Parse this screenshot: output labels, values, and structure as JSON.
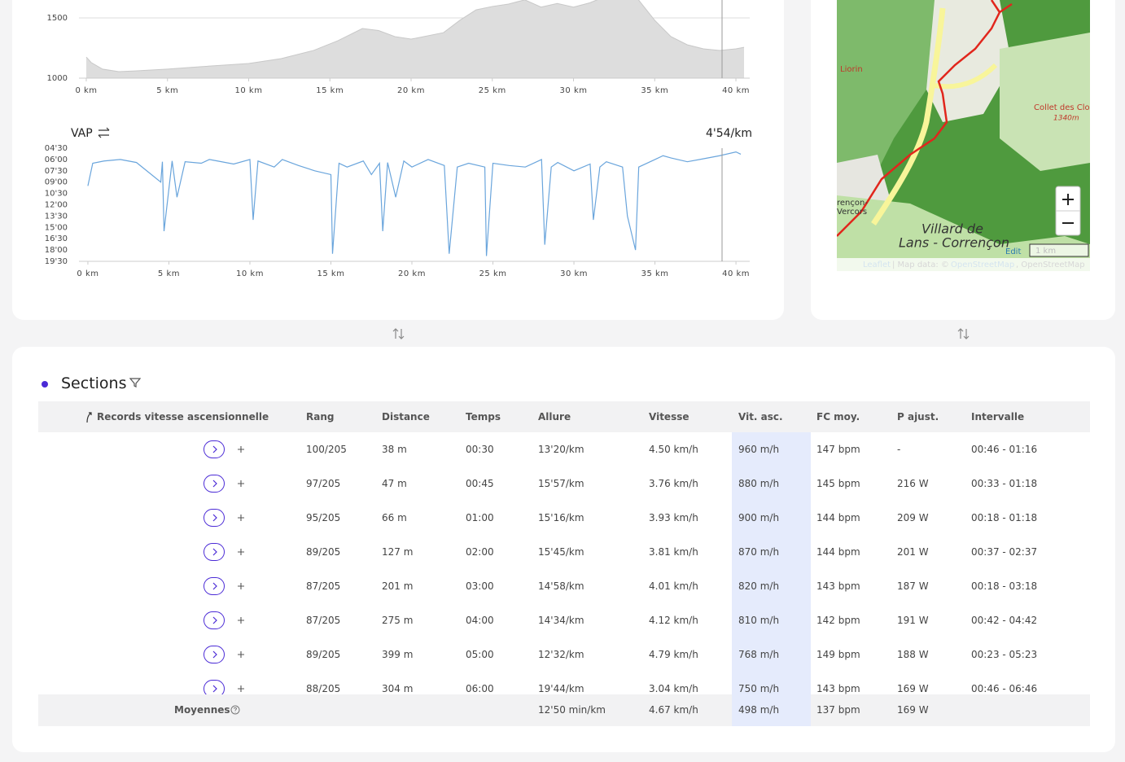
{
  "chart_data": [
    {
      "type": "area",
      "color": "#dddddd",
      "line_color": "#c8c8c8",
      "x": [
        0,
        0.3,
        1,
        2,
        3,
        5,
        7,
        10,
        12,
        14,
        15.5,
        17,
        18,
        19,
        20,
        22,
        23,
        24,
        25,
        26,
        27,
        28,
        29,
        30,
        31,
        32,
        33,
        34,
        35,
        36,
        37,
        38,
        39,
        40,
        40.5
      ],
      "values": [
        1175,
        1130,
        1075,
        1054,
        1060,
        1075,
        1095,
        1122,
        1162,
        1230,
        1311,
        1412,
        1395,
        1345,
        1324,
        1378,
        1480,
        1567,
        1595,
        1615,
        1650,
        1590,
        1620,
        1590,
        1625,
        1680,
        1784,
        1650,
        1480,
        1345,
        1277,
        1243,
        1230,
        1243,
        1256
      ],
      "xlim": [
        -0.45,
        40.85
      ],
      "ylim": [
        1000,
        2000
      ],
      "xticks": [
        {
          "value": 0,
          "label": "0 km"
        },
        {
          "value": 5,
          "label": "5 km"
        },
        {
          "value": 10,
          "label": "10 km"
        },
        {
          "value": 15,
          "label": "15 km"
        },
        {
          "value": 20,
          "label": "20 km"
        },
        {
          "value": 25,
          "label": "25 km"
        },
        {
          "value": 30,
          "label": "30 km"
        },
        {
          "value": 35,
          "label": "35 km"
        },
        {
          "value": 40,
          "label": "40 km"
        }
      ],
      "yticks": [
        1000,
        1500
      ],
      "grid": true
    },
    {
      "type": "line",
      "title": "VAP",
      "annotation": "4'54/km",
      "color": "#6aa5dc",
      "y_reversed": true,
      "x": [
        0,
        0.3,
        1,
        2,
        3,
        4.5,
        4.6,
        4.7,
        5.2,
        5.5,
        6,
        7,
        7.5,
        8,
        9,
        10,
        10.2,
        10.5,
        11.5,
        12,
        13,
        14,
        15,
        15.1,
        15.5,
        16,
        17,
        17.5,
        18,
        18.2,
        18.5,
        19,
        19.5,
        20,
        21,
        22,
        22.3,
        22.8,
        23.5,
        24.5,
        24.6,
        25,
        26,
        27,
        28,
        28.2,
        28.6,
        29,
        30,
        31,
        31.2,
        31.6,
        32,
        33,
        33.3,
        33.8,
        34,
        35,
        35.5,
        36,
        37,
        38,
        39,
        40,
        40.3
      ],
      "values": [
        9.5,
        6.5,
        6.2,
        6.0,
        6.4,
        9.0,
        6.3,
        15.5,
        6.2,
        11.0,
        6.3,
        6.5,
        6.0,
        6.2,
        6.6,
        6.0,
        14.0,
        6.2,
        7.0,
        6.0,
        6.8,
        7.5,
        8.0,
        18.5,
        6.5,
        7.0,
        6.2,
        8.0,
        6.5,
        15.5,
        6.4,
        11.0,
        6.2,
        7.0,
        6.0,
        6.8,
        18.5,
        7.0,
        6.5,
        7.0,
        18.8,
        6.5,
        6.8,
        7.0,
        6.0,
        17.3,
        7.0,
        6.4,
        7.5,
        6.6,
        14.0,
        7.0,
        6.3,
        7.0,
        13.5,
        18.0,
        7.0,
        6.0,
        5.5,
        5.8,
        6.3,
        5.9,
        5.5,
        5.0,
        5.3
      ],
      "xlim": [
        -0.55,
        40.85
      ],
      "ylim": [
        4.5,
        19.5
      ],
      "xticks": [
        {
          "value": 0,
          "label": "0 km"
        },
        {
          "value": 5,
          "label": "5 km"
        },
        {
          "value": 10,
          "label": "10 km"
        },
        {
          "value": 15,
          "label": "15 km"
        },
        {
          "value": 20,
          "label": "20 km"
        },
        {
          "value": 25,
          "label": "25 km"
        },
        {
          "value": 30,
          "label": "30 km"
        },
        {
          "value": 35,
          "label": "35 km"
        },
        {
          "value": 40,
          "label": "40 km"
        }
      ],
      "yticks": [
        {
          "value": 4.5,
          "label": "04'30"
        },
        {
          "value": 6,
          "label": "06'00"
        },
        {
          "value": 7.5,
          "label": "07'30"
        },
        {
          "value": 9,
          "label": "09'00"
        },
        {
          "value": 10.5,
          "label": "10'30"
        },
        {
          "value": 12,
          "label": "12'00"
        },
        {
          "value": 13.5,
          "label": "13'30"
        },
        {
          "value": 15,
          "label": "15'00"
        },
        {
          "value": 16.5,
          "label": "16'30"
        },
        {
          "value": 18,
          "label": "18'00"
        },
        {
          "value": 19.5,
          "label": "19'30"
        }
      ]
    }
  ],
  "map": {
    "places": [
      "Liorin",
      "Collet des Cloc",
      "1340m",
      "rençon-",
      "Vercors",
      "Villard de",
      "Lans - Corrençon"
    ],
    "edit": "Edit",
    "scale": "1 km",
    "attribution": [
      "Leaflet",
      "| Map data: ©",
      "OpenStreetMap",
      ", OpenStreetMap"
    ]
  },
  "sections": {
    "title": "Sections",
    "header": [
      "Records vitesse ascensionnelle",
      "Rang",
      "Distance",
      "Temps",
      "Allure",
      "Vitesse",
      "Vit. asc.",
      "FC moy.",
      "P ajust.",
      "Intervalle"
    ],
    "rows": [
      [
        "100/205",
        "38 m",
        "00:30",
        "13'20/km",
        "4.50 km/h",
        "960 m/h",
        "147 bpm",
        "-",
        "00:46 - 01:16"
      ],
      [
        "97/205",
        "47 m",
        "00:45",
        "15'57/km",
        "3.76 km/h",
        "880 m/h",
        "145 bpm",
        "216 W",
        "00:33 - 01:18"
      ],
      [
        "95/205",
        "66 m",
        "01:00",
        "15'16/km",
        "3.93 km/h",
        "900 m/h",
        "144 bpm",
        "209 W",
        "00:18 - 01:18"
      ],
      [
        "89/205",
        "127 m",
        "02:00",
        "15'45/km",
        "3.81 km/h",
        "870 m/h",
        "144 bpm",
        "201 W",
        "00:37 - 02:37"
      ],
      [
        "87/205",
        "201 m",
        "03:00",
        "14'58/km",
        "4.01 km/h",
        "820 m/h",
        "143 bpm",
        "187 W",
        "00:18 - 03:18"
      ],
      [
        "87/205",
        "275 m",
        "04:00",
        "14'34/km",
        "4.12 km/h",
        "810 m/h",
        "142 bpm",
        "191 W",
        "00:42 - 04:42"
      ],
      [
        "89/205",
        "399 m",
        "05:00",
        "12'32/km",
        "4.79 km/h",
        "768 m/h",
        "149 bpm",
        "188 W",
        "00:23 - 05:23"
      ],
      [
        "88/205",
        "304 m",
        "06:00",
        "19'44/km",
        "3.04 km/h",
        "750 m/h",
        "143 bpm",
        "169 W",
        "00:46 - 06:46"
      ]
    ],
    "averages": {
      "label": "Moyennes",
      "values": [
        "12'50 min/km",
        "4.67 km/h",
        "498 m/h",
        "137 bpm",
        "169 W"
      ]
    }
  }
}
